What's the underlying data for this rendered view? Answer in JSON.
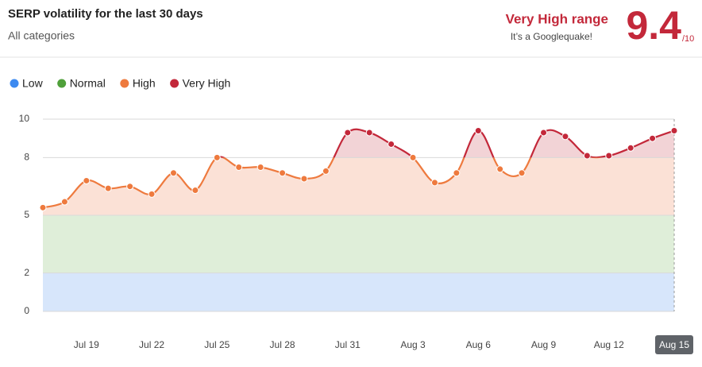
{
  "header": {
    "title": "SERP volatility for the last 30 days",
    "subtitle": "All categories",
    "range_label": "Very High range",
    "range_note": "It’s a Googlequake!",
    "score": 9.4,
    "score_max_label": "/10"
  },
  "chart_data": {
    "type": "line",
    "categories": [
      null,
      null,
      "Jul 19",
      null,
      null,
      "Jul 22",
      null,
      null,
      "Jul 25",
      null,
      null,
      "Jul 28",
      null,
      null,
      "Jul 31",
      null,
      null,
      "Aug 3",
      null,
      null,
      "Aug 6",
      null,
      null,
      "Aug 9",
      null,
      null,
      "Aug 12",
      null,
      null,
      "Aug 15"
    ],
    "values": [
      5.4,
      5.7,
      6.8,
      6.4,
      6.5,
      6.1,
      7.2,
      6.3,
      8.0,
      7.5,
      7.5,
      7.2,
      6.9,
      7.3,
      9.3,
      9.3,
      8.7,
      8.0,
      6.7,
      7.2,
      9.4,
      7.4,
      7.2,
      9.3,
      9.1,
      8.1,
      8.1,
      8.5,
      9.0,
      9.4
    ],
    "bands": [
      {
        "name": "Low",
        "color": "#3d8af0",
        "fill": "#d7e6fb",
        "from": 0,
        "to": 2
      },
      {
        "name": "Normal",
        "color": "#4fa03a",
        "fill": "#dfeed9",
        "from": 2,
        "to": 5
      },
      {
        "name": "High",
        "color": "#ee7a3e",
        "fill": "#fbe1d6",
        "from": 5,
        "to": 8
      },
      {
        "name": "Very High",
        "color": "#c3283a",
        "fill": "#f2d3d6",
        "from": 8,
        "to": 10
      }
    ],
    "ylim": [
      0,
      10
    ],
    "yticks": [
      0,
      2,
      5,
      8,
      10
    ],
    "grid": true,
    "highlighted_category": 29
  }
}
